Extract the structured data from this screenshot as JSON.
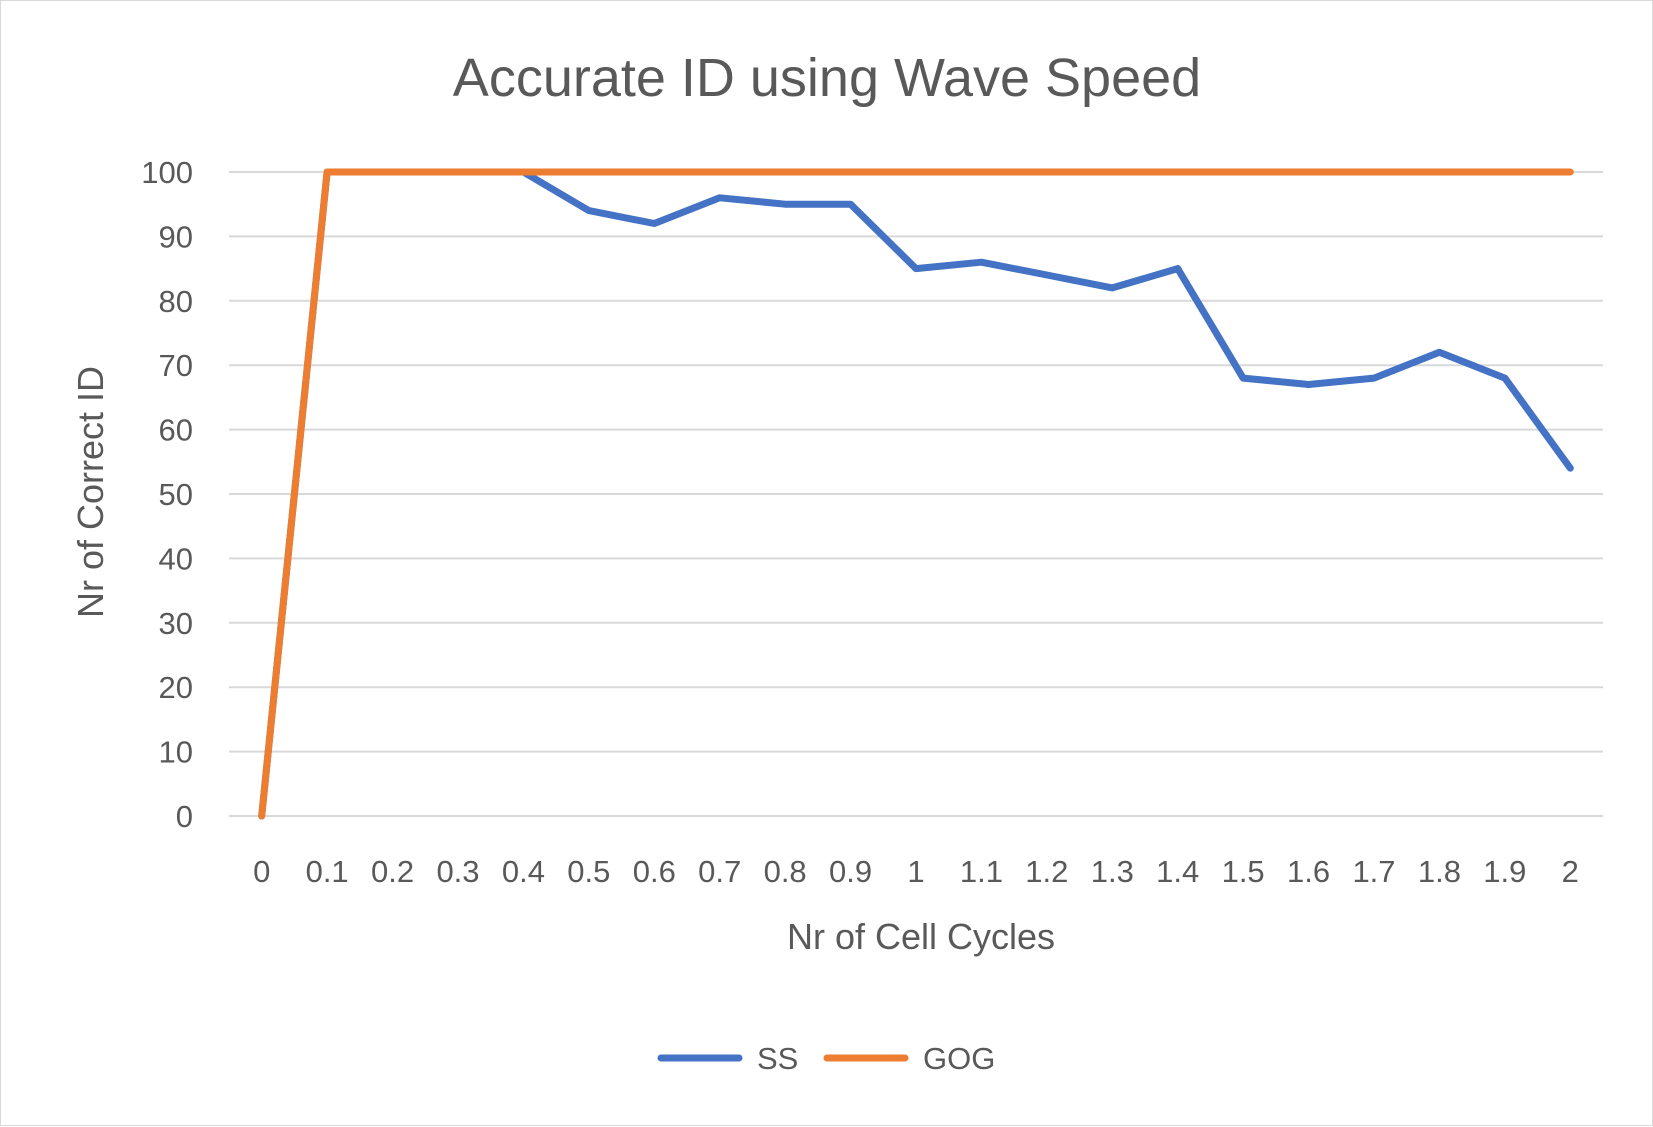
{
  "chart_data": {
    "type": "line",
    "title": "Accurate ID using Wave Speed",
    "xlabel": "Nr of Cell Cycles",
    "ylabel": "Nr of Correct ID",
    "categories": [
      "0",
      "0.1",
      "0.2",
      "0.3",
      "0.4",
      "0.5",
      "0.6",
      "0.7",
      "0.8",
      "0.9",
      "1",
      "1.1",
      "1.2",
      "1.3",
      "1.4",
      "1.5",
      "1.6",
      "1.7",
      "1.8",
      "1.9",
      "2"
    ],
    "ylim": [
      0,
      100
    ],
    "yticks": [
      "0",
      "10",
      "20",
      "30",
      "40",
      "50",
      "60",
      "70",
      "80",
      "90",
      "100"
    ],
    "grid": true,
    "legend_position": "bottom",
    "series": [
      {
        "name": "SS",
        "color": "#4472C4",
        "values": [
          0,
          100,
          100,
          100,
          100,
          94,
          92,
          96,
          95,
          95,
          85,
          86,
          84,
          82,
          85,
          68,
          67,
          68,
          72,
          68,
          54
        ]
      },
      {
        "name": "GOG",
        "color": "#ED7D31",
        "values": [
          0,
          100,
          100,
          100,
          100,
          100,
          100,
          100,
          100,
          100,
          100,
          100,
          100,
          100,
          100,
          100,
          100,
          100,
          100,
          100,
          100
        ]
      }
    ]
  }
}
